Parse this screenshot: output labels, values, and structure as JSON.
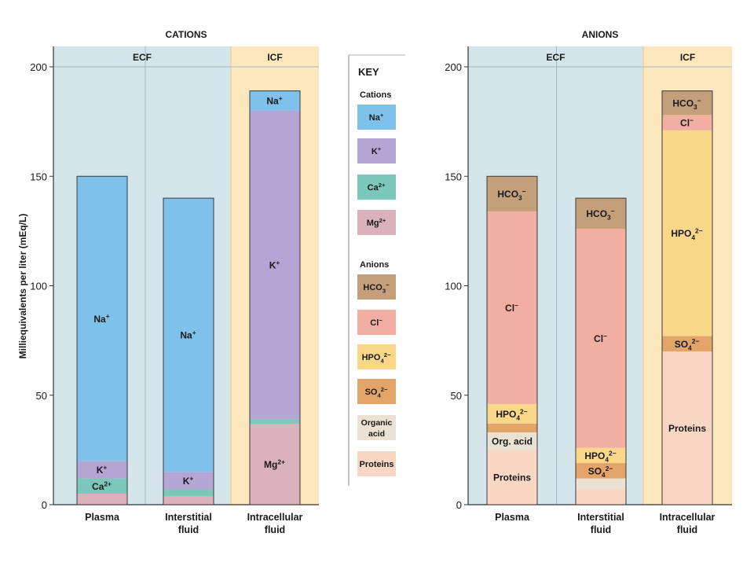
{
  "colors": {
    "Na+": "#7ec1ea",
    "K+": "#b3a6d4",
    "Ca2+": "#7cc7bb",
    "Mg2+": "#dbb1bb",
    "HCO3-": "#c4a07a",
    "Cl-": "#f3aea2",
    "HPO42-": "#fbd78a",
    "SO42-": "#e2a468",
    "Organic acid": "#ebe2d4",
    "Proteins": "#f9d7c4",
    "ecf_bg": "#d4e5ec",
    "icf_bg": "#fde8bd",
    "axis": "#333333"
  },
  "labels": {
    "ylabel": "Milliequivalents per liter (mEq/L)"
  },
  "key": {
    "title": "KEY",
    "cations_heading": "Cations",
    "anions_heading": "Anions",
    "items": [
      {
        "id": "Na+",
        "label": "Na+"
      },
      {
        "id": "K+",
        "label": "K+"
      },
      {
        "id": "Ca2+",
        "label": "Ca2+"
      },
      {
        "id": "Mg2+",
        "label": "Mg2+"
      },
      {
        "id": "HCO3-",
        "label": "HCO3−"
      },
      {
        "id": "Cl-",
        "label": "Cl−"
      },
      {
        "id": "HPO42-",
        "label": "HPO42−"
      },
      {
        "id": "SO42-",
        "label": "SO42−"
      },
      {
        "id": "Organic acid",
        "label": "Organic acid"
      },
      {
        "id": "Proteins",
        "label": "Proteins"
      }
    ]
  },
  "chart_data": [
    {
      "type": "bar",
      "stacked": true,
      "title": "CATIONS",
      "groups": [
        "ECF",
        "ICF"
      ],
      "ylim": [
        0,
        200
      ],
      "yticks": [
        0,
        50,
        100,
        150,
        200
      ],
      "categories": [
        {
          "name": "Plasma",
          "group": "ECF",
          "lines": [
            "Plasma"
          ]
        },
        {
          "name": "Interstitial fluid",
          "group": "ECF",
          "lines": [
            "Interstitial",
            "fluid"
          ]
        },
        {
          "name": "Intracellular fluid",
          "group": "ICF",
          "lines": [
            "Intracellular",
            "fluid"
          ]
        }
      ],
      "segments": [
        [
          {
            "ion": "Mg2+",
            "value": 5,
            "label": ""
          },
          {
            "ion": "Ca2+",
            "value": 7,
            "label": "Ca2+"
          },
          {
            "ion": "K+",
            "value": 8,
            "label": "K+"
          },
          {
            "ion": "Na+",
            "value": 130,
            "label": "Na+"
          }
        ],
        [
          {
            "ion": "Mg2+",
            "value": 4,
            "label": ""
          },
          {
            "ion": "Ca2+",
            "value": 3,
            "label": ""
          },
          {
            "ion": "K+",
            "value": 8,
            "label": "K+"
          },
          {
            "ion": "Na+",
            "value": 125,
            "label": "Na+"
          }
        ],
        [
          {
            "ion": "Mg2+",
            "value": 37,
            "label": "Mg2+"
          },
          {
            "ion": "Ca2+",
            "value": 2,
            "label": ""
          },
          {
            "ion": "K+",
            "value": 141,
            "label": "K+"
          },
          {
            "ion": "Na+",
            "value": 9,
            "label": "Na+"
          }
        ]
      ]
    },
    {
      "type": "bar",
      "stacked": true,
      "title": "ANIONS",
      "groups": [
        "ECF",
        "ICF"
      ],
      "ylim": [
        0,
        200
      ],
      "yticks": [
        0,
        50,
        100,
        150,
        200
      ],
      "categories": [
        {
          "name": "Plasma",
          "group": "ECF",
          "lines": [
            "Plasma"
          ]
        },
        {
          "name": "Interstitial fluid",
          "group": "ECF",
          "lines": [
            "Interstitial",
            "fluid"
          ]
        },
        {
          "name": "Intracellular fluid",
          "group": "ICF",
          "lines": [
            "Intracellular",
            "fluid"
          ]
        }
      ],
      "segments": [
        [
          {
            "ion": "Proteins",
            "value": 25,
            "label": "Proteins"
          },
          {
            "ion": "Organic acid",
            "value": 8,
            "label": "Org. acid"
          },
          {
            "ion": "SO42-",
            "value": 4,
            "label": ""
          },
          {
            "ion": "HPO42-",
            "value": 9,
            "label": "HPO42−"
          },
          {
            "ion": "Cl-",
            "value": 88,
            "label": "Cl−"
          },
          {
            "ion": "HCO3-",
            "value": 16,
            "label": "HCO3−"
          }
        ],
        [
          {
            "ion": "Proteins",
            "value": 7,
            "label": ""
          },
          {
            "ion": "Organic acid",
            "value": 5,
            "label": ""
          },
          {
            "ion": "SO42-",
            "value": 7,
            "label": "SO42−"
          },
          {
            "ion": "HPO42-",
            "value": 7,
            "label": "HPO42−"
          },
          {
            "ion": "Cl-",
            "value": 100,
            "label": "Cl−"
          },
          {
            "ion": "HCO3-",
            "value": 14,
            "label": "HCO3−"
          }
        ],
        [
          {
            "ion": "Proteins",
            "value": 70,
            "label": "Proteins"
          },
          {
            "ion": "SO42-",
            "value": 7,
            "label": "SO42−"
          },
          {
            "ion": "HPO42-",
            "value": 94,
            "label": "HPO42−"
          },
          {
            "ion": "Cl-",
            "value": 7,
            "label": "Cl−"
          },
          {
            "ion": "HCO3-",
            "value": 11,
            "label": "HCO3−"
          }
        ]
      ]
    }
  ]
}
